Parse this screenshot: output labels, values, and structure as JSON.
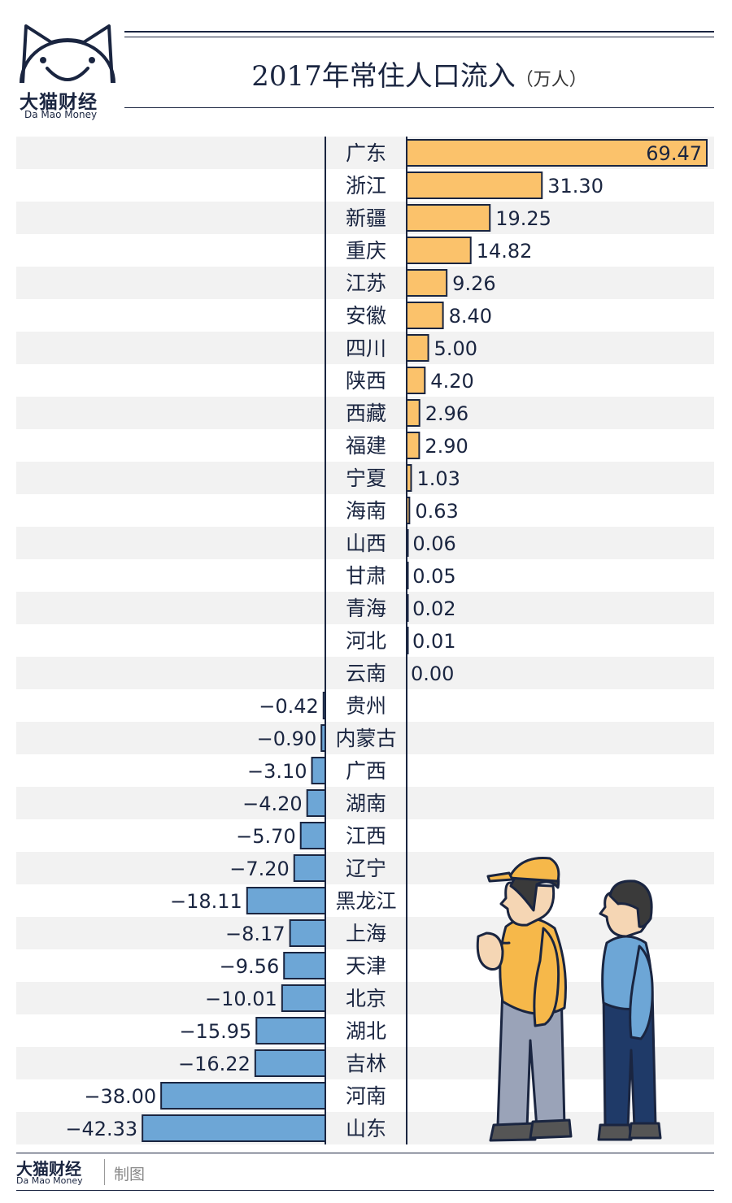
{
  "brand": {
    "name_cn": "大猫财经",
    "name_en": "Da Mao Money"
  },
  "header": {
    "title": "2017年常住人口流入",
    "unit": "（万人）"
  },
  "footer": {
    "brand_cn": "大猫财经",
    "brand_en": "Da Mao Money",
    "credit": "制图"
  },
  "colors": {
    "positive": "#fbc26b",
    "negative": "#6da6d6",
    "outline": "#1a2540",
    "stripe": "#f2f2f2"
  },
  "chart_data": {
    "type": "bar",
    "orientation": "horizontal",
    "title": "2017年常住人口流入（万人）",
    "categories": [
      "广东",
      "浙江",
      "新疆",
      "重庆",
      "江苏",
      "安徽",
      "四川",
      "陕西",
      "西藏",
      "福建",
      "宁夏",
      "海南",
      "山西",
      "甘肃",
      "青海",
      "河北",
      "云南",
      "贵州",
      "内蒙古",
      "广西",
      "湖南",
      "江西",
      "辽宁",
      "黑龙江",
      "上海",
      "天津",
      "北京",
      "湖北",
      "吉林",
      "河南",
      "山东"
    ],
    "values": [
      69.47,
      31.3,
      19.25,
      14.82,
      9.26,
      8.4,
      5.0,
      4.2,
      2.96,
      2.9,
      1.03,
      0.63,
      0.06,
      0.05,
      0.02,
      0.01,
      0.0,
      -0.42,
      -0.9,
      -3.1,
      -4.2,
      -5.7,
      -7.2,
      -18.11,
      -8.17,
      -9.56,
      -10.01,
      -15.95,
      -16.22,
      -38.0,
      -42.33
    ],
    "labels": [
      "69.47",
      "31.30",
      "19.25",
      "14.82",
      "9.26",
      "8.40",
      "5.00",
      "4.20",
      "2.96",
      "2.90",
      "1.03",
      "0.63",
      "0.06",
      "0.05",
      "0.02",
      "0.01",
      "0.00",
      "−0.42",
      "−0.90",
      "−3.10",
      "−4.20",
      "−5.70",
      "−7.20",
      "−18.11",
      "−8.17",
      "−9.56",
      "−10.01",
      "−15.95",
      "−16.22",
      "−38.00",
      "−42.33"
    ],
    "grid": false,
    "legend": "none"
  }
}
